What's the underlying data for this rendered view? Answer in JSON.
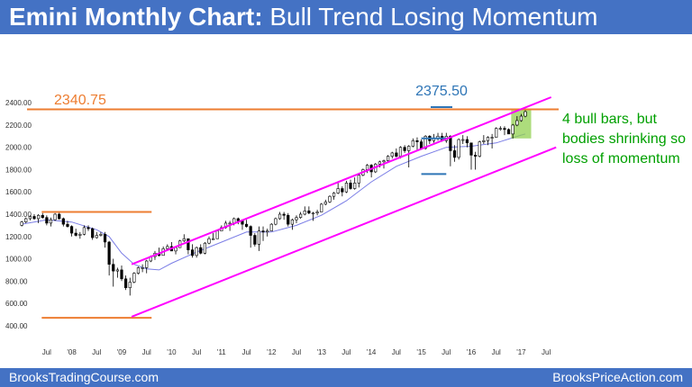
{
  "header": {
    "title_bold": "Emini Monthly Chart:",
    "title_rest": "Bull Trend Losing Momentum",
    "background": "#4472c4"
  },
  "footer": {
    "left": "BrooksTradingCourse.com",
    "right": "BrooksPriceAction.com"
  },
  "chart_data": {
    "type": "candlestick",
    "title": "Emini Monthly Chart: Bull Trend Losing Momentum",
    "ylim": [
      350,
      2450
    ],
    "xlim": [
      2007.25,
      2017.75
    ],
    "y_ticks": [
      "400.00",
      "600.00",
      "800.00",
      "1000.00",
      "1200.00",
      "1400.00",
      "1600.00",
      "1800.00",
      "2000.00",
      "2200.00",
      "2400.00"
    ],
    "y_tick_values": [
      400,
      600,
      800,
      1000,
      1200,
      1400,
      1600,
      1800,
      2000,
      2200,
      2400
    ],
    "x_ticks": [
      {
        "label": "Jul",
        "t": 2007.5
      },
      {
        "label": "'08",
        "t": 2008.0
      },
      {
        "label": "Jul",
        "t": 2008.5
      },
      {
        "label": "'09",
        "t": 2009.0
      },
      {
        "label": "Jul",
        "t": 2009.5
      },
      {
        "label": "'10",
        "t": 2010.0
      },
      {
        "label": "Jul",
        "t": 2010.5
      },
      {
        "label": "'11",
        "t": 2011.0
      },
      {
        "label": "Jul",
        "t": 2011.5
      },
      {
        "label": "'12",
        "t": 2012.0
      },
      {
        "label": "Jul",
        "t": 2012.5
      },
      {
        "label": "'13",
        "t": 2013.0
      },
      {
        "label": "Jul",
        "t": 2013.5
      },
      {
        "label": "'14",
        "t": 2014.0
      },
      {
        "label": "Jul",
        "t": 2014.5
      },
      {
        "label": "'15",
        "t": 2015.0
      },
      {
        "label": "Jul",
        "t": 2015.5
      },
      {
        "label": "'16",
        "t": 2016.0
      },
      {
        "label": "Jul",
        "t": 2016.5
      },
      {
        "label": "'17",
        "t": 2017.0
      },
      {
        "label": "Jul",
        "t": 2017.5
      }
    ],
    "candles": [
      {
        "t": 2007.0,
        "o": 1300,
        "h": 1340,
        "l": 1290,
        "c": 1330
      },
      {
        "t": 2007.083,
        "o": 1330,
        "h": 1370,
        "l": 1320,
        "c": 1360
      },
      {
        "t": 2007.167,
        "o": 1360,
        "h": 1390,
        "l": 1345,
        "c": 1380
      },
      {
        "t": 2007.25,
        "o": 1380,
        "h": 1400,
        "l": 1350,
        "c": 1360
      },
      {
        "t": 2007.333,
        "o": 1360,
        "h": 1400,
        "l": 1320,
        "c": 1390
      },
      {
        "t": 2007.417,
        "o": 1390,
        "h": 1410,
        "l": 1360,
        "c": 1370
      },
      {
        "t": 2007.5,
        "o": 1370,
        "h": 1390,
        "l": 1300,
        "c": 1320
      },
      {
        "t": 2007.583,
        "o": 1320,
        "h": 1370,
        "l": 1290,
        "c": 1350
      },
      {
        "t": 2007.667,
        "o": 1350,
        "h": 1410,
        "l": 1340,
        "c": 1400
      },
      {
        "t": 2007.75,
        "o": 1400,
        "h": 1420,
        "l": 1350,
        "c": 1360
      },
      {
        "t": 2007.833,
        "o": 1360,
        "h": 1370,
        "l": 1290,
        "c": 1310
      },
      {
        "t": 2007.917,
        "o": 1310,
        "h": 1340,
        "l": 1280,
        "c": 1290
      },
      {
        "t": 2008.0,
        "o": 1290,
        "h": 1300,
        "l": 1200,
        "c": 1230
      },
      {
        "t": 2008.083,
        "o": 1230,
        "h": 1270,
        "l": 1200,
        "c": 1210
      },
      {
        "t": 2008.167,
        "o": 1210,
        "h": 1240,
        "l": 1180,
        "c": 1220
      },
      {
        "t": 2008.25,
        "o": 1220,
        "h": 1300,
        "l": 1210,
        "c": 1280
      },
      {
        "t": 2008.333,
        "o": 1280,
        "h": 1300,
        "l": 1250,
        "c": 1270
      },
      {
        "t": 2008.417,
        "o": 1270,
        "h": 1280,
        "l": 1170,
        "c": 1190
      },
      {
        "t": 2008.5,
        "o": 1190,
        "h": 1240,
        "l": 1180,
        "c": 1210
      },
      {
        "t": 2008.583,
        "o": 1210,
        "h": 1240,
        "l": 1200,
        "c": 1220
      },
      {
        "t": 2008.667,
        "o": 1220,
        "h": 1240,
        "l": 1100,
        "c": 1150
      },
      {
        "t": 2008.75,
        "o": 1150,
        "h": 1160,
        "l": 850,
        "c": 950
      },
      {
        "t": 2008.833,
        "o": 950,
        "h": 1000,
        "l": 750,
        "c": 890
      },
      {
        "t": 2008.917,
        "o": 890,
        "h": 920,
        "l": 830,
        "c": 900
      },
      {
        "t": 2009.0,
        "o": 900,
        "h": 940,
        "l": 800,
        "c": 820
      },
      {
        "t": 2009.083,
        "o": 820,
        "h": 850,
        "l": 720,
        "c": 740
      },
      {
        "t": 2009.167,
        "o": 740,
        "h": 830,
        "l": 670,
        "c": 790
      },
      {
        "t": 2009.25,
        "o": 790,
        "h": 880,
        "l": 780,
        "c": 870
      },
      {
        "t": 2009.333,
        "o": 870,
        "h": 930,
        "l": 860,
        "c": 920
      },
      {
        "t": 2009.417,
        "o": 920,
        "h": 950,
        "l": 880,
        "c": 920
      },
      {
        "t": 2009.5,
        "o": 920,
        "h": 990,
        "l": 870,
        "c": 980
      },
      {
        "t": 2009.583,
        "o": 980,
        "h": 1030,
        "l": 970,
        "c": 1020
      },
      {
        "t": 2009.667,
        "o": 1020,
        "h": 1070,
        "l": 990,
        "c": 1050
      },
      {
        "t": 2009.75,
        "o": 1050,
        "h": 1100,
        "l": 1020,
        "c": 1030
      },
      {
        "t": 2009.833,
        "o": 1030,
        "h": 1110,
        "l": 1030,
        "c": 1090
      },
      {
        "t": 2009.917,
        "o": 1090,
        "h": 1130,
        "l": 1080,
        "c": 1110
      },
      {
        "t": 2010.0,
        "o": 1110,
        "h": 1150,
        "l": 1070,
        "c": 1070
      },
      {
        "t": 2010.083,
        "o": 1070,
        "h": 1110,
        "l": 1040,
        "c": 1100
      },
      {
        "t": 2010.167,
        "o": 1100,
        "h": 1170,
        "l": 1100,
        "c": 1160
      },
      {
        "t": 2010.25,
        "o": 1160,
        "h": 1220,
        "l": 1150,
        "c": 1180
      },
      {
        "t": 2010.333,
        "o": 1180,
        "h": 1180,
        "l": 1040,
        "c": 1080
      },
      {
        "t": 2010.417,
        "o": 1080,
        "h": 1130,
        "l": 1010,
        "c": 1030
      },
      {
        "t": 2010.5,
        "o": 1030,
        "h": 1110,
        "l": 1010,
        "c": 1100
      },
      {
        "t": 2010.583,
        "o": 1100,
        "h": 1130,
        "l": 1040,
        "c": 1050
      },
      {
        "t": 2010.667,
        "o": 1050,
        "h": 1150,
        "l": 1040,
        "c": 1140
      },
      {
        "t": 2010.75,
        "o": 1140,
        "h": 1200,
        "l": 1130,
        "c": 1180
      },
      {
        "t": 2010.833,
        "o": 1180,
        "h": 1230,
        "l": 1170,
        "c": 1180
      },
      {
        "t": 2010.917,
        "o": 1180,
        "h": 1260,
        "l": 1180,
        "c": 1250
      },
      {
        "t": 2011.0,
        "o": 1250,
        "h": 1300,
        "l": 1250,
        "c": 1280
      },
      {
        "t": 2011.083,
        "o": 1280,
        "h": 1340,
        "l": 1270,
        "c": 1320
      },
      {
        "t": 2011.167,
        "o": 1320,
        "h": 1340,
        "l": 1250,
        "c": 1320
      },
      {
        "t": 2011.25,
        "o": 1320,
        "h": 1370,
        "l": 1300,
        "c": 1360
      },
      {
        "t": 2011.333,
        "o": 1360,
        "h": 1370,
        "l": 1310,
        "c": 1340
      },
      {
        "t": 2011.417,
        "o": 1340,
        "h": 1350,
        "l": 1260,
        "c": 1310
      },
      {
        "t": 2011.5,
        "o": 1310,
        "h": 1350,
        "l": 1280,
        "c": 1290
      },
      {
        "t": 2011.583,
        "o": 1290,
        "h": 1300,
        "l": 1100,
        "c": 1210
      },
      {
        "t": 2011.667,
        "o": 1210,
        "h": 1230,
        "l": 1110,
        "c": 1130
      },
      {
        "t": 2011.75,
        "o": 1130,
        "h": 1290,
        "l": 1070,
        "c": 1250
      },
      {
        "t": 2011.833,
        "o": 1250,
        "h": 1290,
        "l": 1160,
        "c": 1240
      },
      {
        "t": 2011.917,
        "o": 1240,
        "h": 1270,
        "l": 1200,
        "c": 1250
      },
      {
        "t": 2012.0,
        "o": 1250,
        "h": 1320,
        "l": 1250,
        "c": 1310
      },
      {
        "t": 2012.083,
        "o": 1310,
        "h": 1370,
        "l": 1300,
        "c": 1360
      },
      {
        "t": 2012.167,
        "o": 1360,
        "h": 1420,
        "l": 1350,
        "c": 1400
      },
      {
        "t": 2012.25,
        "o": 1400,
        "h": 1420,
        "l": 1350,
        "c": 1390
      },
      {
        "t": 2012.333,
        "o": 1390,
        "h": 1410,
        "l": 1290,
        "c": 1310
      },
      {
        "t": 2012.417,
        "o": 1310,
        "h": 1360,
        "l": 1260,
        "c": 1350
      },
      {
        "t": 2012.5,
        "o": 1350,
        "h": 1390,
        "l": 1320,
        "c": 1370
      },
      {
        "t": 2012.583,
        "o": 1370,
        "h": 1420,
        "l": 1360,
        "c": 1400
      },
      {
        "t": 2012.667,
        "o": 1400,
        "h": 1470,
        "l": 1390,
        "c": 1430
      },
      {
        "t": 2012.75,
        "o": 1430,
        "h": 1470,
        "l": 1400,
        "c": 1410
      },
      {
        "t": 2012.833,
        "o": 1410,
        "h": 1420,
        "l": 1340,
        "c": 1410
      },
      {
        "t": 2012.917,
        "o": 1410,
        "h": 1440,
        "l": 1390,
        "c": 1420
      },
      {
        "t": 2013.0,
        "o": 1420,
        "h": 1500,
        "l": 1420,
        "c": 1490
      },
      {
        "t": 2013.083,
        "o": 1490,
        "h": 1530,
        "l": 1480,
        "c": 1510
      },
      {
        "t": 2013.167,
        "o": 1510,
        "h": 1570,
        "l": 1500,
        "c": 1560
      },
      {
        "t": 2013.25,
        "o": 1560,
        "h": 1600,
        "l": 1530,
        "c": 1590
      },
      {
        "t": 2013.333,
        "o": 1590,
        "h": 1680,
        "l": 1580,
        "c": 1630
      },
      {
        "t": 2013.417,
        "o": 1630,
        "h": 1650,
        "l": 1560,
        "c": 1600
      },
      {
        "t": 2013.5,
        "o": 1600,
        "h": 1700,
        "l": 1590,
        "c": 1680
      },
      {
        "t": 2013.583,
        "o": 1680,
        "h": 1710,
        "l": 1620,
        "c": 1630
      },
      {
        "t": 2013.667,
        "o": 1630,
        "h": 1730,
        "l": 1620,
        "c": 1680
      },
      {
        "t": 2013.75,
        "o": 1680,
        "h": 1770,
        "l": 1640,
        "c": 1750
      },
      {
        "t": 2013.833,
        "o": 1750,
        "h": 1810,
        "l": 1740,
        "c": 1800
      },
      {
        "t": 2013.917,
        "o": 1800,
        "h": 1850,
        "l": 1770,
        "c": 1840
      },
      {
        "t": 2014.0,
        "o": 1840,
        "h": 1850,
        "l": 1730,
        "c": 1780
      },
      {
        "t": 2014.083,
        "o": 1780,
        "h": 1860,
        "l": 1770,
        "c": 1850
      },
      {
        "t": 2014.167,
        "o": 1850,
        "h": 1880,
        "l": 1820,
        "c": 1870
      },
      {
        "t": 2014.25,
        "o": 1870,
        "h": 1890,
        "l": 1810,
        "c": 1880
      },
      {
        "t": 2014.333,
        "o": 1880,
        "h": 1930,
        "l": 1860,
        "c": 1920
      },
      {
        "t": 2014.417,
        "o": 1920,
        "h": 1960,
        "l": 1900,
        "c": 1950
      },
      {
        "t": 2014.5,
        "o": 1950,
        "h": 1990,
        "l": 1910,
        "c": 1920
      },
      {
        "t": 2014.583,
        "o": 1920,
        "h": 2010,
        "l": 1900,
        "c": 2000
      },
      {
        "t": 2014.667,
        "o": 2000,
        "h": 2020,
        "l": 1950,
        "c": 1970
      },
      {
        "t": 2014.75,
        "o": 1970,
        "h": 2020,
        "l": 1820,
        "c": 2010
      },
      {
        "t": 2014.833,
        "o": 2010,
        "h": 2080,
        "l": 2000,
        "c": 2060
      },
      {
        "t": 2014.917,
        "o": 2060,
        "h": 2090,
        "l": 1970,
        "c": 2050
      },
      {
        "t": 2015.0,
        "o": 2050,
        "h": 2070,
        "l": 1980,
        "c": 1990
      },
      {
        "t": 2015.083,
        "o": 1990,
        "h": 2110,
        "l": 1980,
        "c": 2100
      },
      {
        "t": 2015.167,
        "o": 2100,
        "h": 2110,
        "l": 2030,
        "c": 2060
      },
      {
        "t": 2015.25,
        "o": 2060,
        "h": 2120,
        "l": 2040,
        "c": 2080
      },
      {
        "t": 2015.333,
        "o": 2080,
        "h": 2130,
        "l": 2060,
        "c": 2100
      },
      {
        "t": 2015.417,
        "o": 2100,
        "h": 2130,
        "l": 2050,
        "c": 2060
      },
      {
        "t": 2015.5,
        "o": 2060,
        "h": 2130,
        "l": 2040,
        "c": 2100
      },
      {
        "t": 2015.583,
        "o": 2100,
        "h": 2110,
        "l": 1830,
        "c": 1970
      },
      {
        "t": 2015.667,
        "o": 1970,
        "h": 2020,
        "l": 1870,
        "c": 1910
      },
      {
        "t": 2015.75,
        "o": 1910,
        "h": 2080,
        "l": 1890,
        "c": 2070
      },
      {
        "t": 2015.833,
        "o": 2070,
        "h": 2110,
        "l": 2030,
        "c": 2070
      },
      {
        "t": 2015.917,
        "o": 2070,
        "h": 2100,
        "l": 2000,
        "c": 2040
      },
      {
        "t": 2016.0,
        "o": 2040,
        "h": 2040,
        "l": 1800,
        "c": 1930
      },
      {
        "t": 2016.083,
        "o": 1930,
        "h": 1960,
        "l": 1800,
        "c": 1920
      },
      {
        "t": 2016.167,
        "o": 1920,
        "h": 2060,
        "l": 1910,
        "c": 2050
      },
      {
        "t": 2016.25,
        "o": 2050,
        "h": 2110,
        "l": 2030,
        "c": 2060
      },
      {
        "t": 2016.333,
        "o": 2060,
        "h": 2100,
        "l": 2020,
        "c": 2090
      },
      {
        "t": 2016.417,
        "o": 2090,
        "h": 2120,
        "l": 1990,
        "c": 2090
      },
      {
        "t": 2016.5,
        "o": 2090,
        "h": 2180,
        "l": 2090,
        "c": 2170
      },
      {
        "t": 2016.583,
        "o": 2170,
        "h": 2190,
        "l": 2150,
        "c": 2170
      },
      {
        "t": 2016.667,
        "o": 2170,
        "h": 2190,
        "l": 2110,
        "c": 2160
      },
      {
        "t": 2016.75,
        "o": 2160,
        "h": 2170,
        "l": 2120,
        "c": 2120
      },
      {
        "t": 2016.833,
        "o": 2120,
        "h": 2210,
        "l": 2080,
        "c": 2200
      },
      {
        "t": 2016.917,
        "o": 2200,
        "h": 2280,
        "l": 2190,
        "c": 2240
      },
      {
        "t": 2017.0,
        "o": 2240,
        "h": 2300,
        "l": 2230,
        "c": 2280
      },
      {
        "t": 2017.083,
        "o": 2280,
        "h": 2340,
        "l": 2270,
        "c": 2320
      }
    ],
    "moving_average": {
      "color": "#7b7ee6",
      "points": [
        [
          2007.0,
          1310
        ],
        [
          2007.5,
          1350
        ],
        [
          2008.0,
          1330
        ],
        [
          2008.5,
          1260
        ],
        [
          2008.75,
          1200
        ],
        [
          2009.0,
          1050
        ],
        [
          2009.25,
          950
        ],
        [
          2009.5,
          910
        ],
        [
          2009.75,
          900
        ],
        [
          2010.0,
          960
        ],
        [
          2010.5,
          1060
        ],
        [
          2011.0,
          1150
        ],
        [
          2011.5,
          1240
        ],
        [
          2012.0,
          1240
        ],
        [
          2012.5,
          1300
        ],
        [
          2013.0,
          1390
        ],
        [
          2013.5,
          1520
        ],
        [
          2014.0,
          1690
        ],
        [
          2014.5,
          1830
        ],
        [
          2015.0,
          1920
        ],
        [
          2015.5,
          2000
        ],
        [
          2016.0,
          2010
        ],
        [
          2016.5,
          2040
        ],
        [
          2017.0,
          2110
        ],
        [
          2017.083,
          2120
        ]
      ]
    },
    "annotations": {
      "resistance_line": {
        "value": 2340.75,
        "label": "2340.75",
        "color": "#ed7d31",
        "x_from": 2007.25,
        "x_to": 2017.75
      },
      "support_line": {
        "value": 470,
        "color": "#ed7d31",
        "x_from": 2007.4,
        "x_to": 2009.6
      },
      "prior_high_line": {
        "value": 1420,
        "color": "#ed7d31",
        "x_from": 2007.4,
        "x_to": 2009.6
      },
      "target": {
        "value": 2375.5,
        "label": "2375.50",
        "color": "#2e75b6"
      },
      "range_lines": {
        "color": "#2e75b6",
        "top": 2080,
        "bottom": 1760,
        "x_from": 2015.0,
        "x_to": 2015.5
      },
      "channel": {
        "color": "#ff00ff",
        "upper": [
          [
            2009.2,
            950
          ],
          [
            2017.6,
            2450
          ]
        ],
        "lower": [
          [
            2009.2,
            480
          ],
          [
            2017.7,
            2000
          ]
        ]
      },
      "highlight": {
        "color": "#92d050",
        "x_from": 2016.8,
        "x_to": 2017.2,
        "y_from": 2080,
        "y_to": 2340
      },
      "note": {
        "color": "#00a000",
        "lines": [
          "4 bull bars, but",
          "bodies shrinking so",
          "loss of momentum"
        ]
      }
    }
  }
}
